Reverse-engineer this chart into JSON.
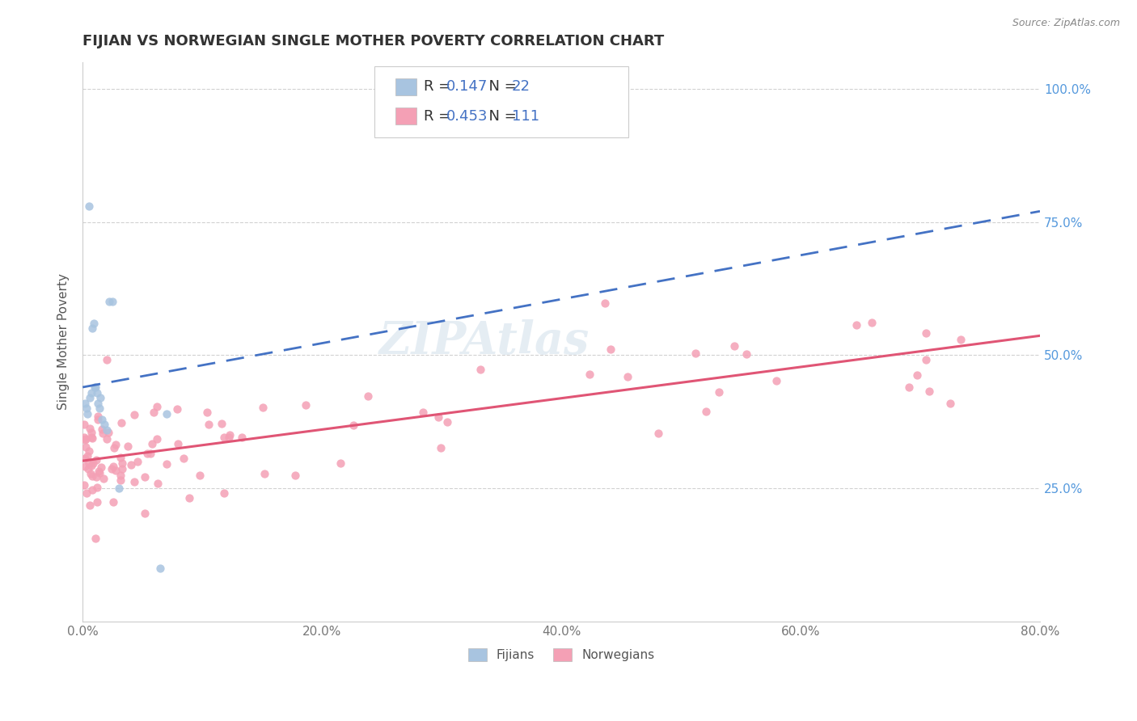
{
  "title": "FIJIAN VS NORWEGIAN SINGLE MOTHER POVERTY CORRELATION CHART",
  "source_text": "Source: ZipAtlas.com",
  "ylabel": "Single Mother Poverty",
  "xlim": [
    0.0,
    0.8
  ],
  "ylim": [
    0.0,
    1.05
  ],
  "xticks": [
    0.0,
    0.2,
    0.4,
    0.6,
    0.8
  ],
  "xtick_labels": [
    "0.0%",
    "20.0%",
    "40.0%",
    "60.0%",
    "80.0%"
  ],
  "yticks": [
    0.25,
    0.5,
    0.75,
    1.0
  ],
  "ytick_labels": [
    "25.0%",
    "50.0%",
    "75.0%",
    "100.0%"
  ],
  "fijian_R": 0.147,
  "fijian_N": 22,
  "norwegian_R": 0.453,
  "norwegian_N": 111,
  "fijian_color": "#a8c4e0",
  "norwegian_color": "#f4a0b5",
  "fijian_line_color": "#4472c4",
  "norwegian_line_color": "#e05575",
  "watermark": "ZIPAtlas",
  "background_color": "#ffffff",
  "grid_color": "#cccccc",
  "title_fontsize": 13,
  "axis_label_fontsize": 11,
  "tick_fontsize": 11,
  "legend_fontsize": 13
}
